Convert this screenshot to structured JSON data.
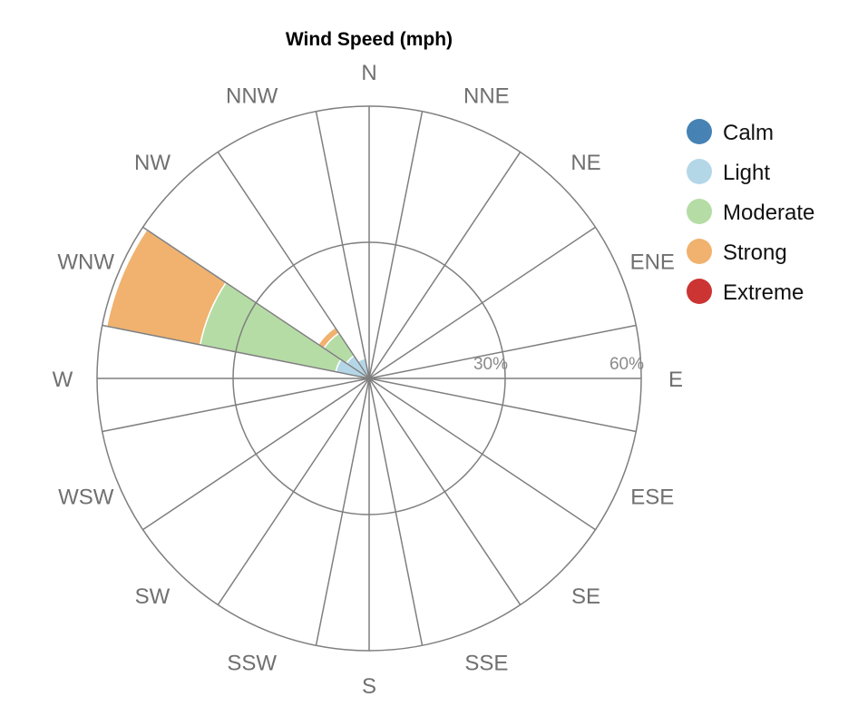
{
  "chart_data": {
    "type": "polar-bar",
    "title": "Wind Speed (mph)",
    "directions": [
      "N",
      "NNE",
      "NE",
      "ENE",
      "E",
      "ESE",
      "SE",
      "SSE",
      "S",
      "SSW",
      "SW",
      "WSW",
      "W",
      "WNW",
      "NW",
      "NNW"
    ],
    "radial_ticks": [
      {
        "value": 30,
        "label": "30%"
      },
      {
        "value": 60,
        "label": "60%"
      }
    ],
    "rmax": 60,
    "series": [
      {
        "name": "Calm",
        "color": "#4682b4",
        "values": {
          "WNW": 0.0
        }
      },
      {
        "name": "Light",
        "color": "#b4d7e8",
        "values": {
          "NNW": 4.5,
          "NW": 6.0,
          "WNW": 7.5
        }
      },
      {
        "name": "Moderate",
        "color": "#b5dca5",
        "values": {
          "NW": 6.0,
          "WNW": 30.5
        }
      },
      {
        "name": "Strong",
        "color": "#f0b26e",
        "values": {
          "NW": 1.5,
          "WNW": 21.0
        }
      },
      {
        "name": "Extreme",
        "color": "#cc3333",
        "values": {}
      }
    ],
    "legend_position": "right"
  }
}
